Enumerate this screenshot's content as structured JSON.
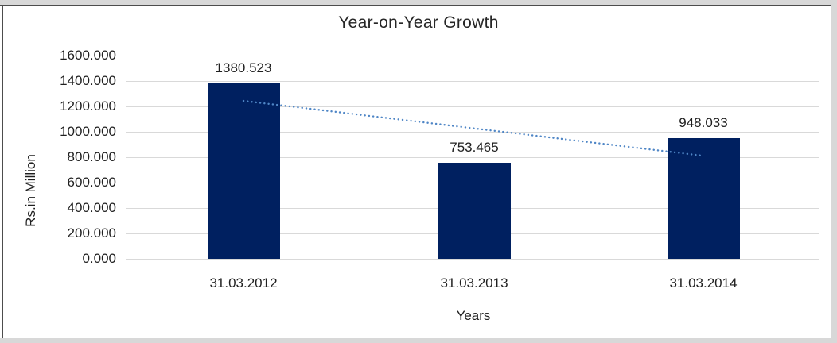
{
  "style": {
    "bar_color": "#002060",
    "trendline_color": "#4f86c6",
    "gridline_color": "#d9d9d9",
    "text_color": "#1f1f1f"
  },
  "chart_data": {
    "type": "bar",
    "title": "Year-on-Year Growth",
    "xlabel": "Years",
    "ylabel": "Rs.in Million",
    "categories": [
      "31.03.2012",
      "31.03.2013",
      "31.03.2014"
    ],
    "values": [
      1380.523,
      753.465,
      948.033
    ],
    "data_labels": [
      "1380.523",
      "753.465",
      "948.033"
    ],
    "ylim": [
      0,
      1600
    ],
    "y_tick_step": 200,
    "y_tick_labels": [
      "1600.000",
      "1400.000",
      "1200.000",
      "1000.000",
      "800.000",
      "600.000",
      "400.000",
      "200.000",
      "0.000"
    ],
    "grid": true,
    "legend": false,
    "trendline": {
      "type": "linear",
      "line_style": "dotted",
      "values_at_categories": [
        1243.6,
        1027.3,
        811.1
      ]
    }
  }
}
